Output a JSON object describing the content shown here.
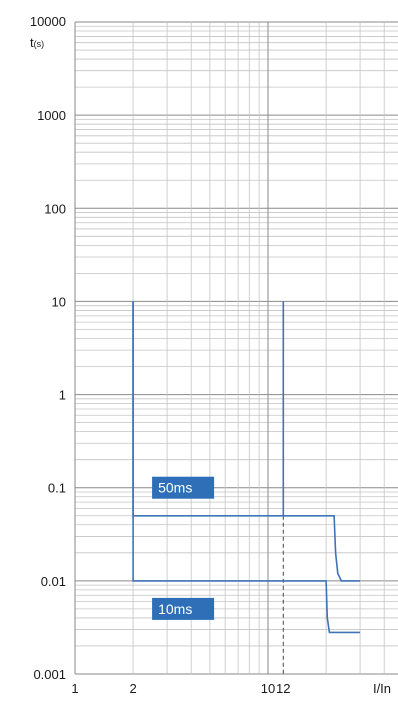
{
  "chart_data": {
    "type": "line",
    "title": "",
    "xlabel": "I/In",
    "ylabel": "t",
    "ylabel_unit": "(s)",
    "x_scale": "log",
    "y_scale": "log",
    "xlim": [
      1,
      30
    ],
    "ylim": [
      0.001,
      10000
    ],
    "grid": true,
    "y_ticks": [
      {
        "value": 10000,
        "label": "10000"
      },
      {
        "value": 1000,
        "label": "1000"
      },
      {
        "value": 100,
        "label": "100"
      },
      {
        "value": 10,
        "label": "10"
      },
      {
        "value": 1,
        "label": "1"
      },
      {
        "value": 0.1,
        "label": "0.1"
      },
      {
        "value": 0.01,
        "label": "0.01"
      },
      {
        "value": 0.001,
        "label": "0.001"
      }
    ],
    "x_ticks": [
      {
        "value": 1,
        "label": "1"
      },
      {
        "value": 2,
        "label": "2"
      },
      {
        "value": 10,
        "label": "10"
      },
      {
        "value": 12,
        "label": "12"
      },
      {
        "value": 28,
        "label": "I/In"
      }
    ],
    "dashed_reference": {
      "x": 12
    },
    "series": [
      {
        "name": "50ms",
        "color": "#3f73b8",
        "points": [
          [
            2,
            10
          ],
          [
            2,
            0.05
          ],
          [
            12,
            0.05
          ],
          [
            12,
            10
          ]
        ],
        "tail": [
          [
            12,
            0.05
          ],
          [
            22,
            0.05
          ],
          [
            22.4,
            0.02
          ],
          [
            23,
            0.012
          ],
          [
            24,
            0.01
          ],
          [
            30,
            0.01
          ]
        ]
      },
      {
        "name": "10ms",
        "color": "#3f73b8",
        "points": [
          [
            2,
            10
          ],
          [
            2,
            0.01
          ],
          [
            20,
            0.01
          ],
          [
            20.3,
            0.004
          ],
          [
            20.8,
            0.0028
          ],
          [
            30,
            0.0028
          ]
        ]
      }
    ],
    "labels": [
      {
        "text": "50ms",
        "x": 2.6,
        "y": 0.1
      },
      {
        "text": "10ms",
        "x": 2.6,
        "y": 0.005
      }
    ]
  }
}
